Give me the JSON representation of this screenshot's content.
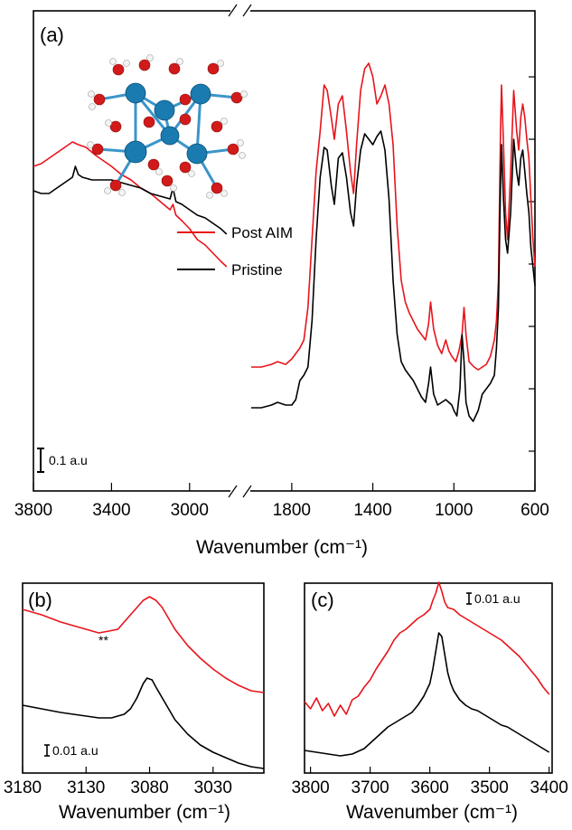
{
  "colors": {
    "post_aim": "#e8141b",
    "pristine": "#000000",
    "atom": "#1a7bb0",
    "oxygen": "#d21a1a",
    "hydrogen": "#f0f0f0"
  },
  "chart_data": [
    {
      "type": "line",
      "panel": "(a)",
      "xlabel": "Wavenumber (cm⁻¹)",
      "x_reversed": true,
      "broken_axis": true,
      "segments": [
        {
          "xlim": [
            3800,
            2800
          ],
          "ticks": [
            3800,
            3400,
            3000
          ]
        },
        {
          "xlim": [
            2000,
            600
          ],
          "ticks": [
            1800,
            1400,
            1000,
            600
          ]
        }
      ],
      "legend": [
        "Post AIM",
        "Pristine"
      ],
      "legend_position": "center-left",
      "scale_bar": "0.1 a.u",
      "inset": "molecular cluster structure (blue metal atoms, red oxygen, white hydrogen)",
      "series": [
        {
          "name": "Post AIM",
          "color": "#e8141b",
          "high_x": [
            3800,
            3760,
            3720,
            3680,
            3640,
            3600,
            3570,
            3530,
            3480,
            3440,
            3400,
            3350,
            3300,
            3250,
            3200,
            3150,
            3100,
            3085,
            3070,
            3040,
            3000,
            2960,
            2920,
            2880,
            2840,
            2810
          ],
          "high_y": [
            0.82,
            0.83,
            0.85,
            0.87,
            0.89,
            0.91,
            0.9,
            0.89,
            0.86,
            0.84,
            0.82,
            0.79,
            0.77,
            0.74,
            0.72,
            0.69,
            0.66,
            0.68,
            0.64,
            0.62,
            0.59,
            0.55,
            0.53,
            0.5,
            0.47,
            0.45
          ],
          "low_x": [
            2000,
            1950,
            1900,
            1870,
            1830,
            1800,
            1760,
            1740,
            1720,
            1700,
            1680,
            1660,
            1640,
            1625,
            1605,
            1590,
            1570,
            1550,
            1530,
            1510,
            1495,
            1480,
            1460,
            1440,
            1420,
            1400,
            1380,
            1360,
            1340,
            1320,
            1300,
            1280,
            1260,
            1240,
            1220,
            1200,
            1180,
            1160,
            1140,
            1125,
            1115,
            1100,
            1080,
            1060,
            1040,
            1025,
            1010,
            990,
            975,
            960,
            950,
            940,
            925,
            900,
            880,
            860,
            840,
            820,
            800,
            790,
            780,
            775,
            770,
            765,
            755,
            745,
            735,
            720,
            705,
            690,
            680,
            670,
            660,
            650,
            640,
            630,
            620,
            610,
            600
          ],
          "low_y": [
            0.08,
            0.08,
            0.09,
            0.1,
            0.09,
            0.11,
            0.15,
            0.18,
            0.3,
            0.55,
            0.8,
            0.95,
            1.12,
            1.1,
            1.0,
            0.92,
            1.05,
            1.08,
            0.95,
            0.8,
            0.72,
            0.9,
            1.1,
            1.18,
            1.2,
            1.15,
            1.05,
            1.08,
            1.12,
            1.05,
            0.9,
            0.6,
            0.4,
            0.32,
            0.28,
            0.25,
            0.22,
            0.2,
            0.18,
            0.24,
            0.32,
            0.22,
            0.16,
            0.13,
            0.18,
            0.14,
            0.12,
            0.1,
            0.14,
            0.2,
            0.3,
            0.2,
            0.1,
            0.08,
            0.07,
            0.08,
            0.09,
            0.12,
            0.18,
            0.25,
            0.4,
            0.7,
            0.95,
            1.12,
            0.9,
            0.65,
            0.55,
            0.8,
            1.1,
            0.95,
            0.88,
            1.0,
            1.05,
            1.0,
            0.92,
            0.85,
            0.7,
            0.55,
            0.45
          ]
        },
        {
          "name": "Pristine",
          "color": "#000000",
          "high_x": [
            3800,
            3760,
            3720,
            3680,
            3640,
            3600,
            3585,
            3570,
            3550,
            3500,
            3450,
            3400,
            3350,
            3300,
            3250,
            3200,
            3150,
            3100,
            3085,
            3070,
            3040,
            3000,
            2960,
            2920,
            2880,
            2840,
            2810
          ],
          "high_y": [
            0.73,
            0.72,
            0.72,
            0.74,
            0.76,
            0.78,
            0.82,
            0.79,
            0.78,
            0.77,
            0.77,
            0.77,
            0.76,
            0.75,
            0.74,
            0.72,
            0.71,
            0.7,
            0.74,
            0.69,
            0.68,
            0.66,
            0.64,
            0.63,
            0.61,
            0.59,
            0.57
          ],
          "low_x": [
            2000,
            1950,
            1900,
            1870,
            1830,
            1800,
            1780,
            1760,
            1740,
            1720,
            1700,
            1680,
            1660,
            1640,
            1625,
            1605,
            1590,
            1570,
            1550,
            1530,
            1510,
            1495,
            1480,
            1460,
            1440,
            1420,
            1400,
            1380,
            1360,
            1340,
            1320,
            1300,
            1280,
            1260,
            1240,
            1220,
            1200,
            1180,
            1160,
            1140,
            1125,
            1115,
            1100,
            1080,
            1060,
            1040,
            1025,
            1010,
            1000,
            985,
            970,
            960,
            950,
            940,
            925,
            905,
            880,
            860,
            840,
            820,
            800,
            790,
            780,
            775,
            770,
            765,
            755,
            745,
            735,
            720,
            705,
            690,
            680,
            670,
            660,
            650,
            640,
            630,
            620,
            610,
            600
          ],
          "low_y": [
            -0.07,
            -0.07,
            -0.06,
            -0.05,
            -0.06,
            -0.06,
            -0.04,
            0.03,
            0.05,
            0.08,
            0.25,
            0.55,
            0.78,
            0.89,
            0.88,
            0.75,
            0.68,
            0.85,
            0.87,
            0.78,
            0.65,
            0.6,
            0.75,
            0.88,
            0.94,
            0.92,
            0.9,
            0.93,
            0.95,
            0.88,
            0.7,
            0.4,
            0.2,
            0.1,
            0.07,
            0.05,
            0.03,
            0.0,
            -0.03,
            -0.05,
            0.02,
            0.08,
            -0.02,
            -0.06,
            -0.05,
            -0.04,
            -0.05,
            -0.06,
            -0.08,
            -0.1,
            0.0,
            0.2,
            0.1,
            -0.05,
            -0.1,
            -0.12,
            -0.08,
            -0.02,
            0.0,
            0.02,
            0.05,
            0.15,
            0.3,
            0.55,
            0.75,
            0.9,
            0.7,
            0.55,
            0.5,
            0.65,
            0.92,
            0.8,
            0.75,
            0.85,
            0.88,
            0.8,
            0.72,
            0.65,
            0.52,
            0.45,
            0.38
          ]
        }
      ]
    },
    {
      "type": "line",
      "panel": "(b)",
      "xlabel": "Wavenumber (cm⁻¹)",
      "x_reversed": true,
      "xlim": [
        3180,
        2990
      ],
      "xticks": [
        3180,
        3130,
        3080,
        3030
      ],
      "scale_bar": "0.01 a.u",
      "annotation": "**",
      "series": [
        {
          "name": "Post AIM",
          "color": "#e8141b",
          "x": [
            3180,
            3165,
            3150,
            3140,
            3130,
            3120,
            3112,
            3105,
            3100,
            3095,
            3090,
            3085,
            3080,
            3075,
            3070,
            3065,
            3060,
            3050,
            3040,
            3030,
            3020,
            3010,
            3000,
            2990
          ],
          "y": [
            0.83,
            0.8,
            0.76,
            0.74,
            0.72,
            0.7,
            0.71,
            0.72,
            0.76,
            0.8,
            0.84,
            0.88,
            0.9,
            0.88,
            0.84,
            0.78,
            0.72,
            0.63,
            0.56,
            0.5,
            0.45,
            0.41,
            0.38,
            0.37
          ]
        },
        {
          "name": "Pristine",
          "color": "#000000",
          "x": [
            3180,
            3165,
            3150,
            3140,
            3130,
            3120,
            3110,
            3100,
            3095,
            3090,
            3085,
            3082,
            3078,
            3075,
            3070,
            3065,
            3060,
            3050,
            3040,
            3030,
            3020,
            3010,
            3000,
            2990
          ],
          "y": [
            0.3,
            0.28,
            0.26,
            0.25,
            0.24,
            0.23,
            0.23,
            0.25,
            0.28,
            0.34,
            0.42,
            0.45,
            0.44,
            0.4,
            0.34,
            0.28,
            0.22,
            0.14,
            0.08,
            0.04,
            0.01,
            -0.02,
            -0.04,
            -0.05
          ]
        }
      ]
    },
    {
      "type": "line",
      "panel": "(c)",
      "xlabel": "Wavenumber (cm⁻¹)",
      "x_reversed": true,
      "xlim": [
        3810,
        3395
      ],
      "xticks": [
        3800,
        3700,
        3600,
        3500,
        3400
      ],
      "scale_bar": "0.01 a.u",
      "series": [
        {
          "name": "Post AIM",
          "color": "#e8141b",
          "x": [
            3810,
            3800,
            3790,
            3780,
            3770,
            3760,
            3750,
            3740,
            3730,
            3720,
            3710,
            3700,
            3690,
            3680,
            3670,
            3660,
            3650,
            3640,
            3630,
            3620,
            3610,
            3600,
            3595,
            3590,
            3585,
            3580,
            3575,
            3570,
            3560,
            3550,
            3540,
            3530,
            3520,
            3510,
            3500,
            3490,
            3480,
            3470,
            3460,
            3450,
            3440,
            3430,
            3420,
            3410,
            3400
          ],
          "y": [
            0.32,
            0.28,
            0.34,
            0.27,
            0.31,
            0.24,
            0.3,
            0.25,
            0.33,
            0.35,
            0.4,
            0.44,
            0.5,
            0.55,
            0.6,
            0.66,
            0.7,
            0.72,
            0.75,
            0.78,
            0.8,
            0.83,
            0.88,
            0.92,
            0.98,
            0.93,
            0.87,
            0.84,
            0.83,
            0.8,
            0.78,
            0.76,
            0.74,
            0.72,
            0.7,
            0.68,
            0.66,
            0.63,
            0.6,
            0.57,
            0.53,
            0.49,
            0.45,
            0.4,
            0.36
          ]
        },
        {
          "name": "Pristine",
          "color": "#000000",
          "x": [
            3810,
            3790,
            3770,
            3750,
            3730,
            3710,
            3690,
            3670,
            3650,
            3630,
            3620,
            3610,
            3600,
            3595,
            3590,
            3585,
            3580,
            3575,
            3570,
            3565,
            3560,
            3550,
            3540,
            3530,
            3520,
            3510,
            3500,
            3490,
            3480,
            3470,
            3460,
            3450,
            3440,
            3430,
            3420,
            3410,
            3400
          ],
          "y": [
            0.05,
            0.04,
            0.03,
            0.02,
            0.03,
            0.06,
            0.12,
            0.18,
            0.22,
            0.26,
            0.3,
            0.35,
            0.42,
            0.5,
            0.6,
            0.7,
            0.68,
            0.58,
            0.48,
            0.42,
            0.38,
            0.33,
            0.3,
            0.28,
            0.27,
            0.25,
            0.23,
            0.21,
            0.19,
            0.18,
            0.16,
            0.14,
            0.12,
            0.1,
            0.08,
            0.06,
            0.04
          ]
        }
      ]
    }
  ]
}
